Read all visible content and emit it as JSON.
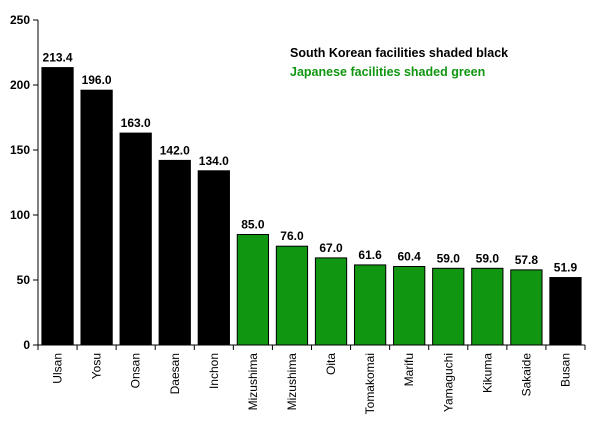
{
  "chart_data": {
    "type": "bar",
    "categories": [
      "Ulsan",
      "Yosu",
      "Onsan",
      "Daesan",
      "Inchon",
      "Mizushima",
      "Mizushima",
      "Oita",
      "Tomakomai",
      "Marifu",
      "Yamaguchi",
      "Kikuma",
      "Sakaide",
      "Busan"
    ],
    "values": [
      213.4,
      196.0,
      163.0,
      142.0,
      134.0,
      85.0,
      76.0,
      67.0,
      61.6,
      60.4,
      59.0,
      59.0,
      57.8,
      51.9
    ],
    "data_labels": [
      "213.4",
      "196.0",
      "163.0",
      "142.0",
      "134.0",
      "85.0",
      "76.0",
      "67.0",
      "61.6",
      "60.4",
      "59.0",
      "59.0",
      "57.8",
      "51.9"
    ],
    "groups": [
      "korea",
      "korea",
      "korea",
      "korea",
      "korea",
      "japan",
      "japan",
      "japan",
      "japan",
      "japan",
      "japan",
      "japan",
      "japan",
      "korea"
    ],
    "ylim": [
      0,
      250
    ],
    "yticks": [
      0,
      50,
      100,
      150,
      200,
      250
    ],
    "grid": false,
    "title": "",
    "xlabel": "",
    "ylabel": "",
    "legend": {
      "placement": "top-right",
      "entries": [
        {
          "text": "South Korean facilities shaded black",
          "color": "#000000"
        },
        {
          "text": "Japanese facilities shaded green",
          "color": "#119611"
        }
      ]
    },
    "colors": {
      "korea": "#000000",
      "japan": "#119611"
    }
  }
}
